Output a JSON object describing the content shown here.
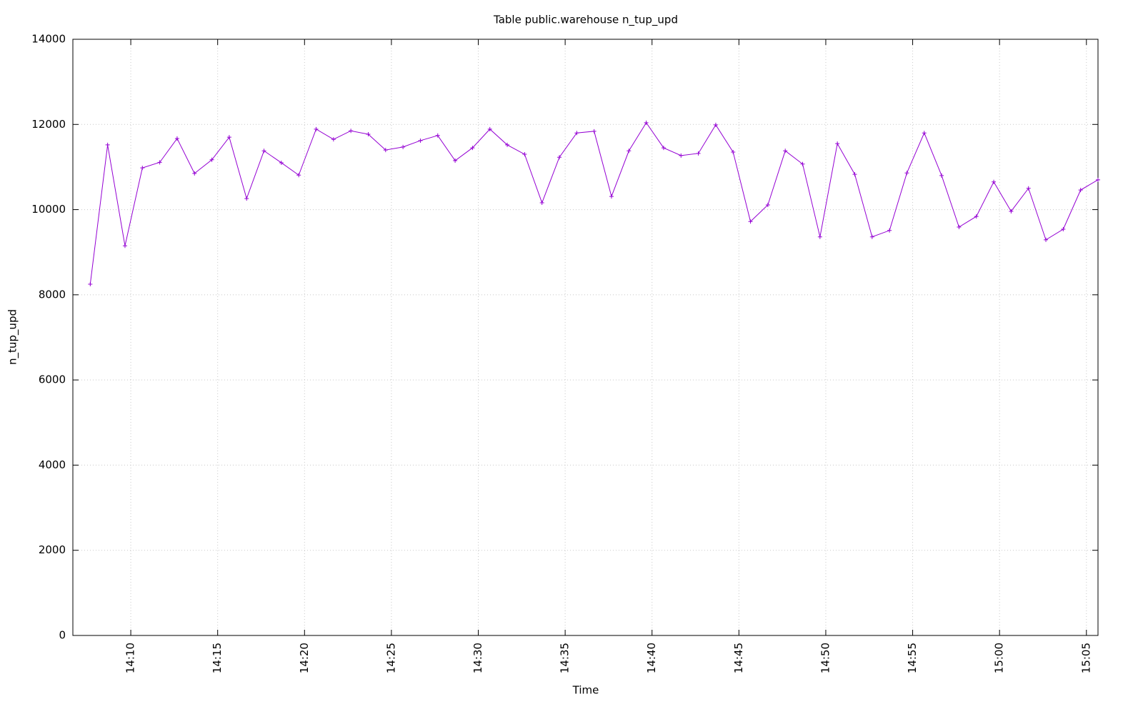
{
  "chart_data": {
    "type": "line",
    "title": "Table public.warehouse n_tup_upd",
    "x_label": "Time",
    "y_label": "n_tup_upd",
    "x": [
      "14:07:40",
      "14:08:40",
      "14:09:40",
      "14:10:40",
      "14:11:40",
      "14:12:40",
      "14:13:40",
      "14:14:40",
      "14:15:40",
      "14:16:40",
      "14:17:40",
      "14:18:40",
      "14:19:40",
      "14:20:40",
      "14:21:40",
      "14:22:40",
      "14:23:40",
      "14:24:40",
      "14:25:40",
      "14:26:40",
      "14:27:40",
      "14:28:40",
      "14:29:40",
      "14:30:40",
      "14:31:40",
      "14:32:40",
      "14:33:40",
      "14:34:40",
      "14:35:40",
      "14:36:40",
      "14:37:40",
      "14:38:40",
      "14:39:40",
      "14:40:40",
      "14:41:40",
      "14:42:40",
      "14:43:40",
      "14:44:40",
      "14:45:40",
      "14:46:40",
      "14:47:40",
      "14:48:40",
      "14:49:40",
      "14:50:40",
      "14:51:40",
      "14:52:40",
      "14:53:40",
      "14:54:40",
      "14:55:40",
      "14:56:40",
      "14:57:40",
      "14:58:40",
      "14:59:40",
      "15:00:40",
      "15:01:40",
      "15:02:40",
      "15:03:40",
      "15:04:40",
      "15:05:40"
    ],
    "series": [
      {
        "name": "n_tup_upd",
        "color": "#9400d3",
        "values": [
          8250,
          11520,
          9150,
          10980,
          11110,
          11670,
          10850,
          11170,
          11700,
          10260,
          11380,
          11100,
          10810,
          11890,
          11650,
          11850,
          11770,
          11400,
          11470,
          11620,
          11740,
          11150,
          11450,
          11890,
          11520,
          11300,
          10160,
          11230,
          11800,
          11840,
          10310,
          11380,
          12040,
          11450,
          11270,
          11320,
          11990,
          11350,
          9720,
          10110,
          11380,
          11070,
          9360,
          11550,
          10830,
          9360,
          9510,
          10860,
          11800,
          10800,
          9590,
          9840,
          10650,
          9960,
          10500,
          9290,
          9540,
          10460,
          10700
        ]
      }
    ],
    "xlim": [
      "14:06:40",
      "15:05:40"
    ],
    "xticks": [
      "14:10",
      "14:15",
      "14:20",
      "14:25",
      "14:30",
      "14:35",
      "14:40",
      "14:45",
      "14:50",
      "14:55",
      "15:00",
      "15:05"
    ],
    "ylim": [
      0,
      14000
    ],
    "yticks": [
      0,
      2000,
      4000,
      6000,
      8000,
      10000,
      12000,
      14000
    ],
    "grid": true
  }
}
